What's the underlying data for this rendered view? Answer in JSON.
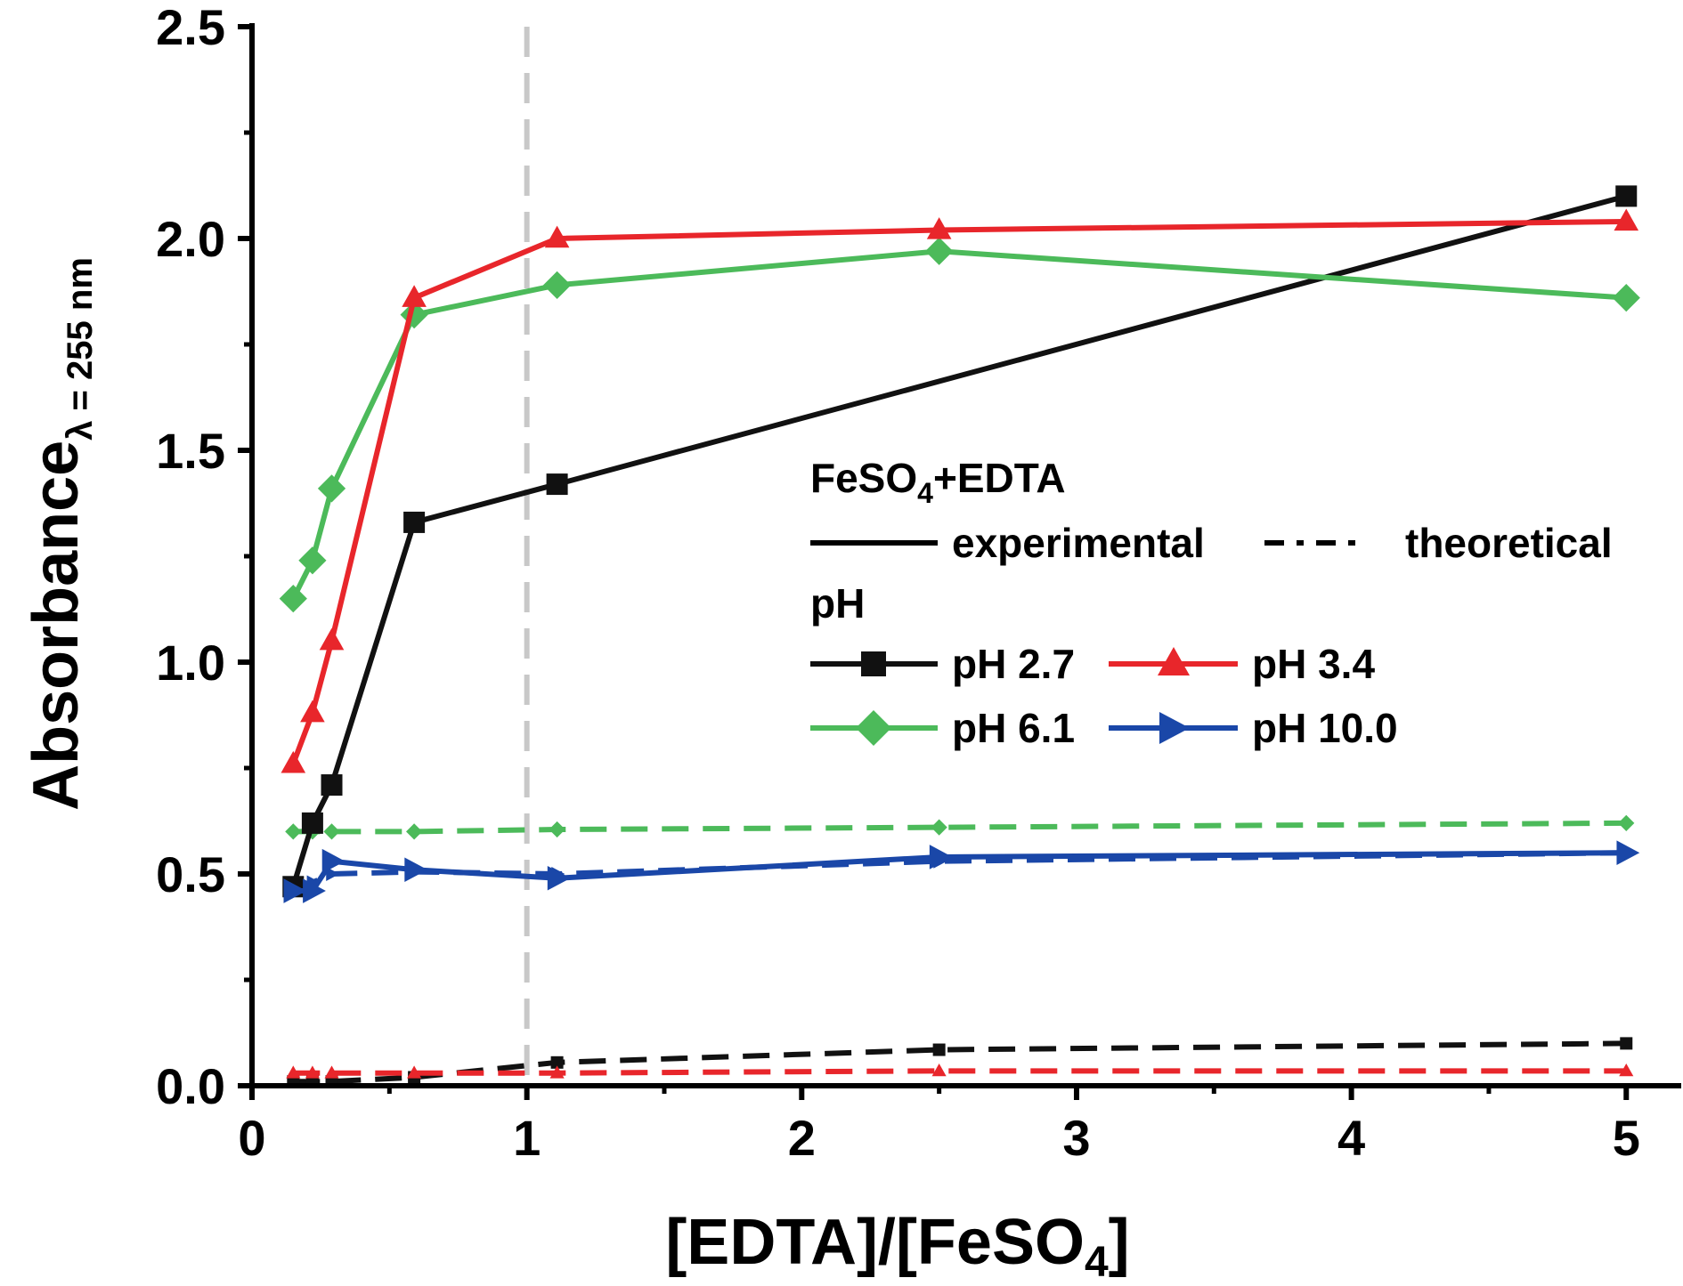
{
  "chart_data": {
    "type": "line",
    "x_axis": {
      "label_main": "[EDTA]/[FeSO",
      "label_sub": "4",
      "label_end": "]",
      "xlim": [
        0,
        5.2
      ],
      "ticks": [
        0,
        1,
        2,
        3,
        4,
        5
      ],
      "tick_labels": [
        "0",
        "1",
        "2",
        "3",
        "4",
        "5"
      ]
    },
    "y_axis": {
      "label_main": "Absorbance",
      "label_sub": "λ = 255 nm",
      "ylim": [
        0,
        2.5
      ],
      "ticks": [
        0,
        0.5,
        1.0,
        1.5,
        2.0,
        2.5
      ],
      "tick_labels": [
        "0.0",
        "0.5",
        "1.0",
        "1.5",
        "2.0",
        "2.5"
      ]
    },
    "reference_line": {
      "x": 1,
      "style": "dashed",
      "color": "#c8c8c8"
    },
    "series": [
      {
        "name": "pH 2.7",
        "kind": "experimental",
        "color": "#111111",
        "marker": "square",
        "x": [
          0.15,
          0.22,
          0.29,
          0.59,
          1.11,
          5.0
        ],
        "y": [
          0.47,
          0.62,
          0.71,
          1.33,
          1.42,
          2.1
        ]
      },
      {
        "name": "pH 3.4",
        "kind": "experimental",
        "color": "#e8262b",
        "marker": "triangle-up",
        "x": [
          0.15,
          0.22,
          0.29,
          0.59,
          1.11,
          2.5,
          5.0
        ],
        "y": [
          0.76,
          0.88,
          1.05,
          1.86,
          2.0,
          2.02,
          2.04
        ]
      },
      {
        "name": "pH 6.1",
        "kind": "experimental",
        "color": "#4cba5a",
        "marker": "diamond",
        "x": [
          0.15,
          0.22,
          0.29,
          0.59,
          1.11,
          2.5,
          5.0
        ],
        "y": [
          1.15,
          1.24,
          1.41,
          1.82,
          1.89,
          1.97,
          1.86
        ]
      },
      {
        "name": "pH 10.0",
        "kind": "experimental",
        "color": "#1a47a8",
        "marker": "triangle-right",
        "x": [
          0.15,
          0.22,
          0.29,
          0.59,
          1.11,
          2.5,
          5.0
        ],
        "y": [
          0.46,
          0.46,
          0.53,
          0.51,
          0.49,
          0.54,
          0.55
        ]
      },
      {
        "name": "pH 2.7",
        "kind": "theoretical",
        "color": "#111111",
        "marker": "square",
        "x": [
          0.15,
          0.22,
          0.29,
          0.59,
          1.11,
          2.5,
          5.0
        ],
        "y": [
          0.01,
          0.01,
          0.01,
          0.02,
          0.055,
          0.085,
          0.1
        ]
      },
      {
        "name": "pH 3.4",
        "kind": "theoretical",
        "color": "#e8262b",
        "marker": "triangle-up",
        "x": [
          0.15,
          0.22,
          0.29,
          0.59,
          1.11,
          2.5,
          5.0
        ],
        "y": [
          0.03,
          0.03,
          0.03,
          0.03,
          0.03,
          0.035,
          0.035
        ]
      },
      {
        "name": "pH 6.1",
        "kind": "theoretical",
        "color": "#4cba5a",
        "marker": "diamond",
        "x": [
          0.15,
          0.22,
          0.29,
          0.59,
          1.11,
          2.5,
          5.0
        ],
        "y": [
          0.6,
          0.6,
          0.6,
          0.6,
          0.605,
          0.61,
          0.62
        ]
      },
      {
        "name": "pH 10.0",
        "kind": "theoretical",
        "color": "#1a47a8",
        "marker": "triangle-right",
        "x": [
          0.15,
          0.22,
          0.29,
          0.59,
          1.11,
          2.5,
          5.0
        ],
        "y": [
          0.46,
          0.48,
          0.5,
          0.505,
          0.5,
          0.53,
          0.55
        ]
      }
    ],
    "legend": {
      "placement": "center-right",
      "title_main": "FeSO",
      "title_sub": "4",
      "title_end": "+EDTA",
      "style_experimental": "experimental",
      "style_theoretical": "theoretical",
      "ph_heading": "pH",
      "entries": [
        "pH 2.7",
        "pH 3.4",
        "pH 6.1",
        "pH 10.0"
      ]
    }
  }
}
